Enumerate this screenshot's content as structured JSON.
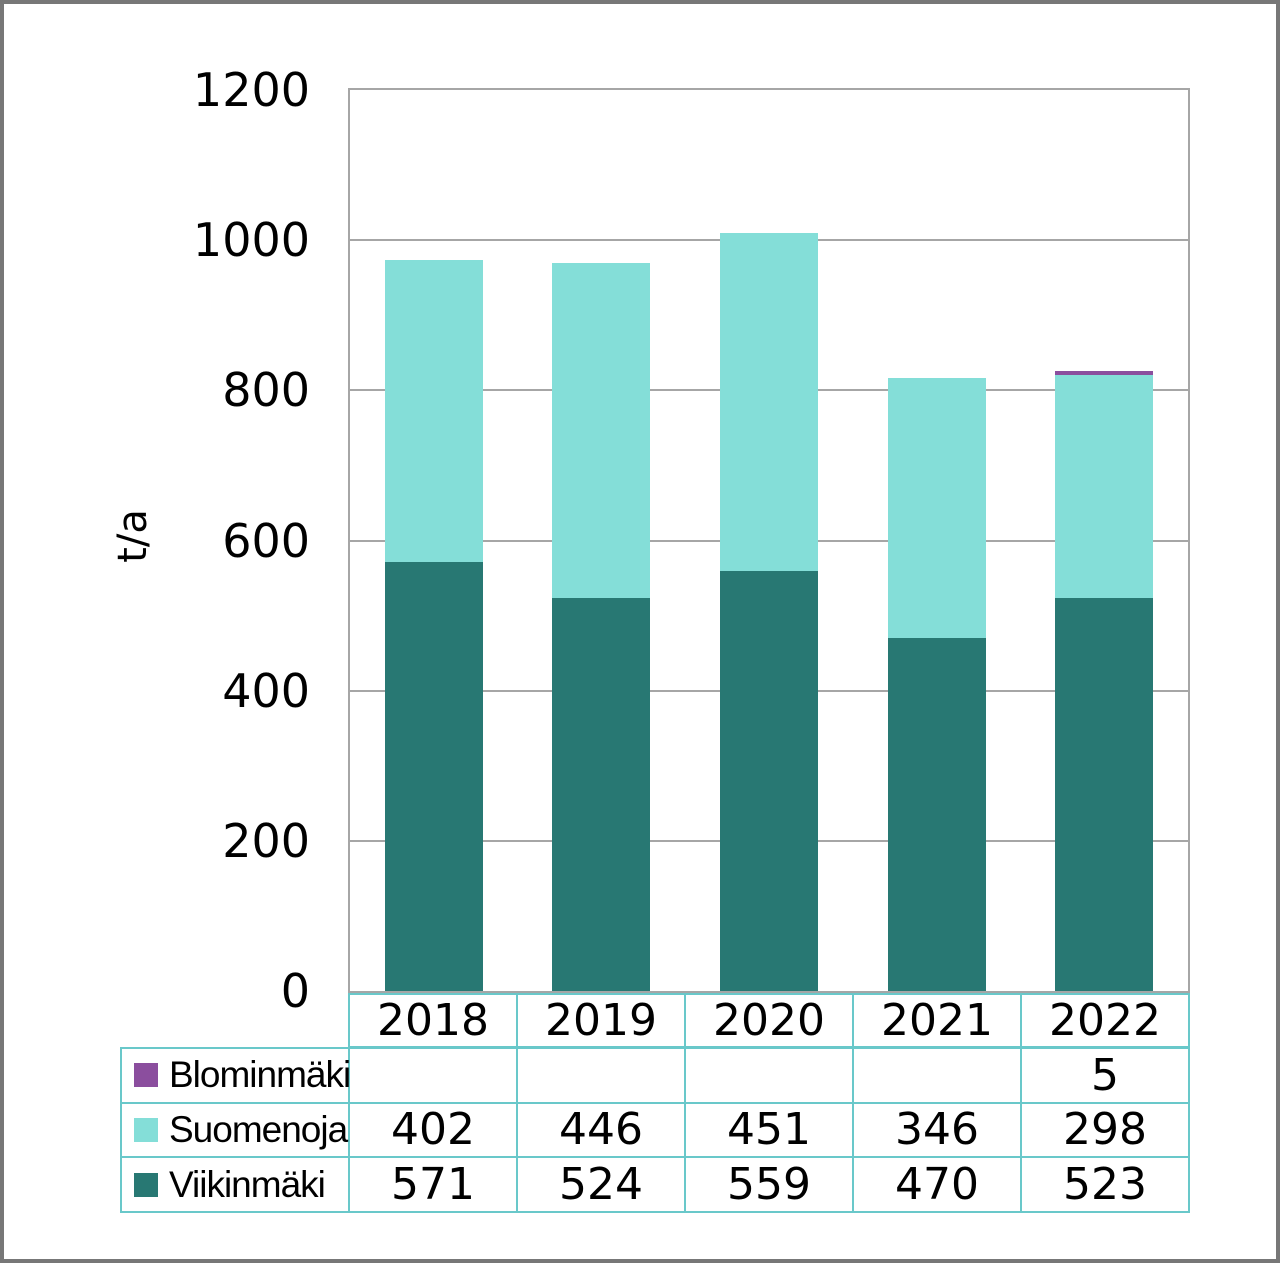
{
  "chart_data": {
    "type": "bar",
    "stacked": true,
    "title": "",
    "ylabel": "t/a",
    "ylim": [
      0,
      1200
    ],
    "ytick_step": 200,
    "yticks": [
      0,
      200,
      400,
      600,
      800,
      1000,
      1200
    ],
    "grid": true,
    "legend_position": "table-bottom",
    "categories": [
      "2018",
      "2019",
      "2020",
      "2021",
      "2022"
    ],
    "series": [
      {
        "name": "Blominmäki",
        "color": "#8B4E9E",
        "values": [
          null,
          null,
          null,
          null,
          5
        ]
      },
      {
        "name": "Suomenoja",
        "color": "#84DED8",
        "values": [
          402,
          446,
          451,
          346,
          298
        ]
      },
      {
        "name": "Viikinmäki",
        "color": "#287873",
        "values": [
          571,
          524,
          559,
          470,
          523
        ]
      }
    ],
    "colors": {
      "axis": "#A6A6A6",
      "gridline": "#A6A6A6",
      "table_border": "#69C8CA",
      "outer_frame": "#777777",
      "text": "#000000"
    }
  }
}
